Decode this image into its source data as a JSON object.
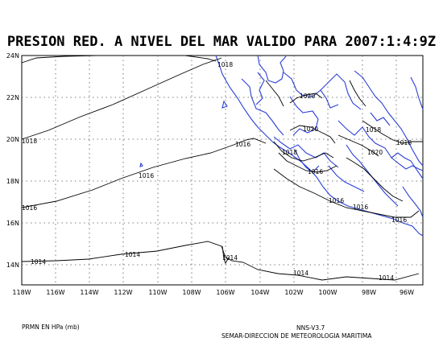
{
  "title": "PRESION RED. A NIVEL DEL MAR VALIDO PARA 2007:1:4:9Z",
  "footer": {
    "units": "PRMN EN HPa (mb)",
    "version": "NNS-V3.7",
    "agency": "SEMAR-DIRECCION DE METEOROLOGIA MARITIMA"
  },
  "axes": {
    "lon_labels": [
      "118W",
      "116W",
      "114W",
      "112W",
      "110W",
      "108W",
      "106W",
      "104W",
      "102W",
      "100W",
      "98W",
      "96W"
    ],
    "lat_labels": [
      "24N",
      "22N",
      "20N",
      "18N",
      "16N",
      "14N"
    ]
  },
  "isobar_labels": [
    "1018",
    "1018",
    "1016",
    "1016",
    "1016",
    "1016",
    "1014",
    "1014",
    "1014",
    "1014",
    "1014",
    "1020",
    "1020",
    "1018",
    "1016",
    "1018",
    "1020",
    "1016",
    "1018",
    "1016"
  ],
  "colors": {
    "isobars": "#000000",
    "coastline": "#2a3fd6",
    "grid": "#555555"
  }
}
